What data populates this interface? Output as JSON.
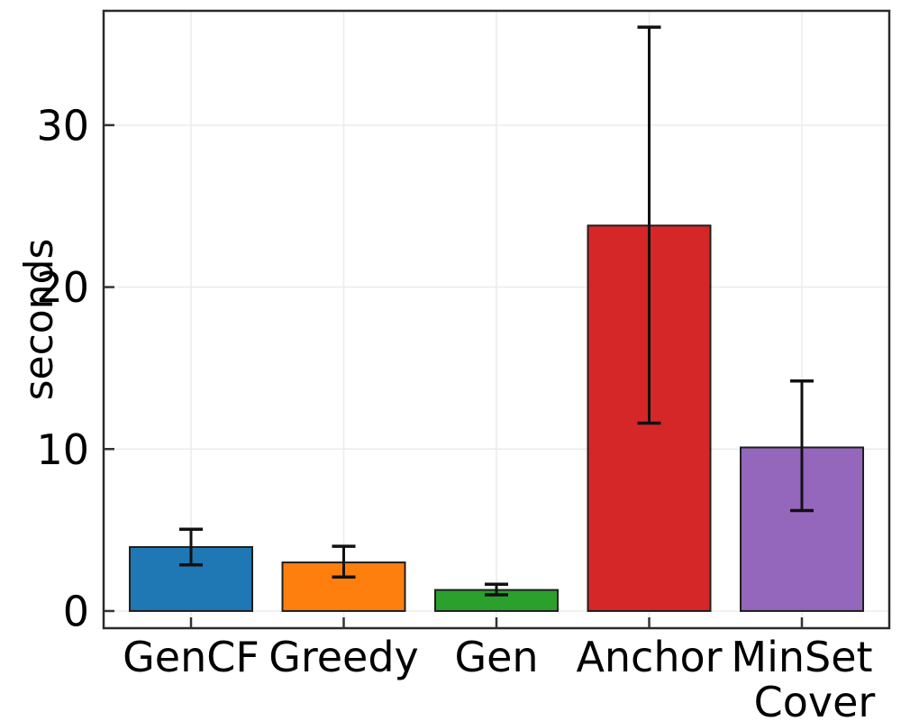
{
  "chart_data": {
    "type": "bar",
    "title": "",
    "xlabel": "",
    "ylabel": "seconds",
    "categories": [
      "GenCF",
      "Greedy",
      "Gen",
      "Anchor",
      "MinSet Cover"
    ],
    "category_label_lines": [
      [
        "GenCF"
      ],
      [
        "Greedy"
      ],
      [
        "Gen"
      ],
      [
        "Anchor"
      ],
      [
        "MinSet",
        "Cover"
      ]
    ],
    "values": [
      3.95,
      3.0,
      1.3,
      23.8,
      10.1
    ],
    "error_low": [
      2.85,
      2.1,
      1.0,
      11.6,
      6.2
    ],
    "error_high": [
      5.05,
      4.0,
      1.65,
      36.05,
      14.2
    ],
    "yticks": [
      0,
      10,
      20,
      30
    ],
    "ylim": [
      -1.06,
      37.06
    ],
    "grid": "on",
    "legend": "none",
    "bar_colors": [
      "#1f77b4",
      "#ff7f0e",
      "#2ca02c",
      "#d62728",
      "#9467bd"
    ],
    "edge_color": "#1f1f1f",
    "errorbar_color": "#111111",
    "grid_color": "#ebebeb",
    "frame_color": "#2a2a2a",
    "tick_color": "#333333",
    "background": "#ffffff"
  }
}
